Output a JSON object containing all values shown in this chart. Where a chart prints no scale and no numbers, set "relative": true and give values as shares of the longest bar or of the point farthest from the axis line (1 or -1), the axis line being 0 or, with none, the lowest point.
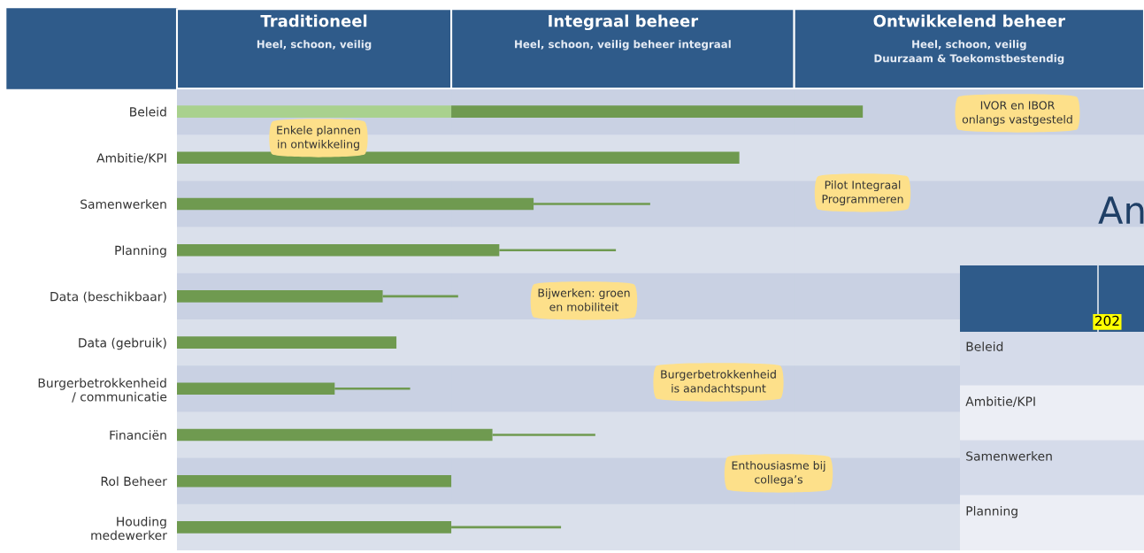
{
  "chart_data": [
    {
      "type": "bar",
      "orientation": "horizontal",
      "stacked": true,
      "relative": true,
      "tick_labels": "y",
      "categories": [
        "Beleid",
        "Ambitie/KPI",
        "Samenwerken",
        "Planning",
        "Data (beschikbaar)",
        "Data (gebruik)",
        "Burgerbetrokkenheid\n/ communicatie",
        "Financiën",
        "Rol Beheer",
        "Houding\nmedewerker"
      ],
      "series": [
        {
          "color": "#a9d18e",
          "values": [
            0.4,
            null,
            null,
            null,
            null,
            null,
            null,
            null,
            null,
            null
          ]
        },
        {
          "color": "#6f9a50",
          "values": [
            0.6,
            0.82,
            0.52,
            0.47,
            0.3,
            0.32,
            0.23,
            0.46,
            0.4,
            0.4
          ]
        },
        {
          "color": "#6f9a50",
          "values": [
            null,
            null,
            0.17,
            0.17,
            0.11,
            null,
            0.11,
            0.15,
            null,
            0.16
          ]
        }
      ],
      "bands": [
        {
          "axis": "x",
          "from": 0,
          "to": 0.4,
          "label": "Traditioneel\nHeel, schoon, veilig",
          "color": "#2f5b8a"
        },
        {
          "axis": "x",
          "from": 0.4,
          "to": 0.9,
          "label": "Integraal beheer\nHeel, schoon, veilig beheer integraal",
          "color": "#2f5b8a"
        },
        {
          "axis": "x",
          "from": 0.9,
          "to": 1.41,
          "label": "Ontwikkelend beheer\nHeel, schoon, veilig\nDuurzaam & Toekomstbestendig",
          "color": "#2f5b8a"
        }
      ],
      "annotations": [
        "Enkele plannen\nin ontwikkeling",
        "IVOR en IBOR\nonlangs vastgesteld",
        "Pilot Integraal\nProgrammeren",
        "Bijwerken: groen\nen mobiliteit",
        "Burgerbetrokkenheid\nis aandachtspunt",
        "Enthousiasme bij\ncollega’s"
      ]
    },
    {
      "type": "other",
      "title": "An",
      "categories": [
        "Beleid",
        "Ambitie/KPI",
        "Samenwerken",
        "Planning"
      ],
      "annotations": [
        "202"
      ]
    }
  ]
}
